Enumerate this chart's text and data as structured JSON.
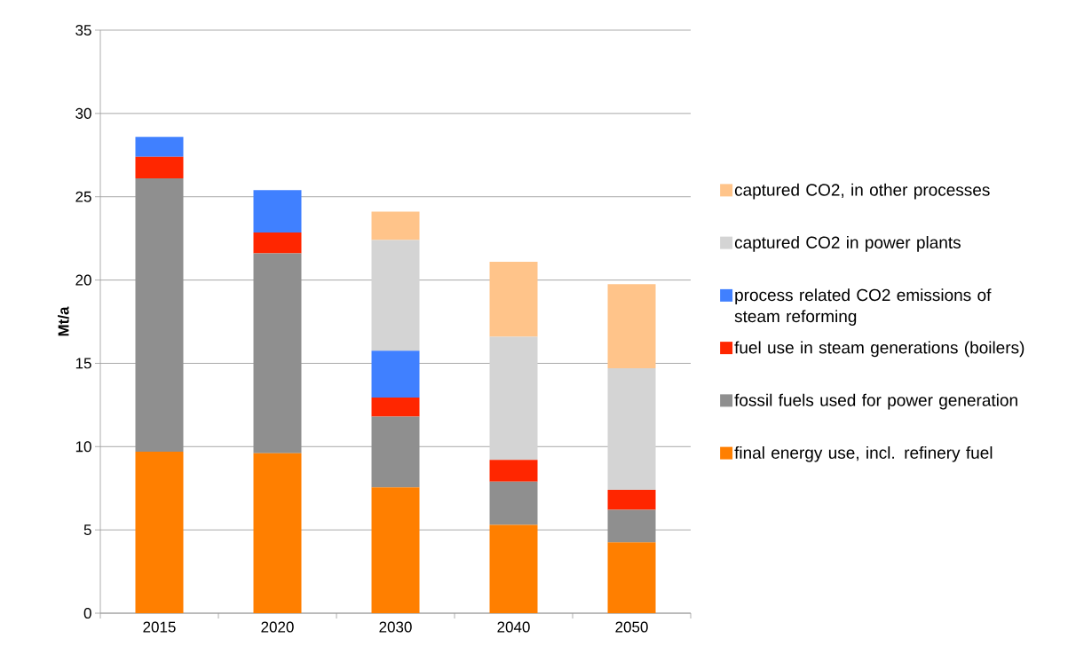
{
  "chart_data": {
    "type": "bar",
    "stacked": true,
    "ylabel": "Mt/a",
    "categories": [
      "2015",
      "2020",
      "2030",
      "2040",
      "2050"
    ],
    "series": [
      {
        "name": "final energy use, incl. refinery fuel",
        "color": "#ff7f00",
        "values": [
          9.7,
          9.6,
          7.55,
          5.3,
          4.25
        ]
      },
      {
        "name": "fossil fuels used for power generation",
        "color": "#8f8f8f",
        "values": [
          16.4,
          12.0,
          4.25,
          2.6,
          1.95
        ]
      },
      {
        "name": "fuel use in steam generations (boilers)",
        "color": "#ff2600",
        "values": [
          1.3,
          1.25,
          1.15,
          1.3,
          1.2
        ]
      },
      {
        "name": "process related CO2 emissions of steam reforming",
        "color": "#4080ff",
        "values": [
          1.2,
          2.55,
          2.8,
          0,
          0
        ]
      },
      {
        "name": "captured CO2 in power plants",
        "color": "#d4d4d4",
        "values": [
          0,
          0,
          6.65,
          7.4,
          7.3
        ]
      },
      {
        "name": "captured CO2, in other processes",
        "color": "#ffc48a",
        "values": [
          0,
          0,
          1.7,
          4.5,
          5.05
        ]
      }
    ],
    "ylim": [
      0,
      35
    ],
    "yticks": [
      0,
      5,
      10,
      15,
      20,
      25,
      30,
      35
    ],
    "grid": "y",
    "legend": "right"
  }
}
